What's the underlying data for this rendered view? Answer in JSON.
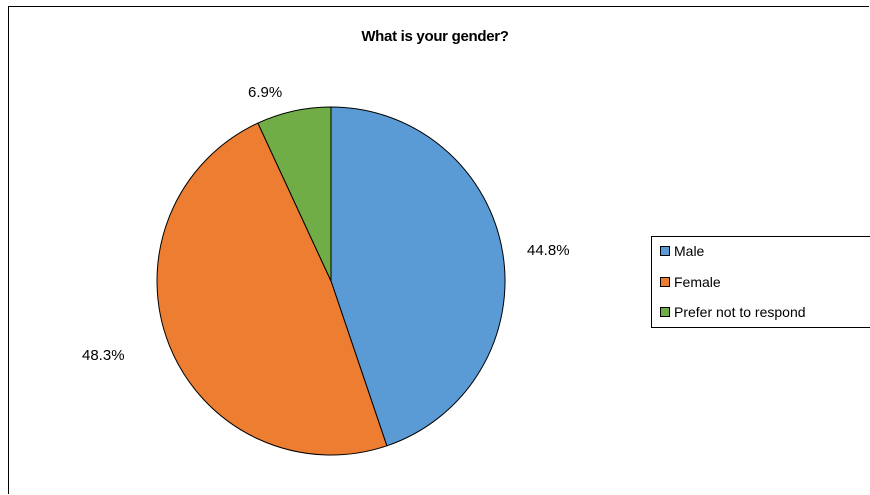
{
  "chart_data": {
    "type": "pie",
    "title": "What is your gender?",
    "categories": [
      "Male",
      "Female",
      "Prefer not to respond"
    ],
    "values": [
      44.8,
      48.3,
      6.9
    ],
    "labels": [
      "44.8%",
      "48.3%",
      "6.9%"
    ],
    "colors": [
      "#5b9bd5",
      "#ed7d31",
      "#70ad47"
    ],
    "start_angle_deg": 0,
    "direction": "clockwise",
    "legend_position": "right"
  }
}
